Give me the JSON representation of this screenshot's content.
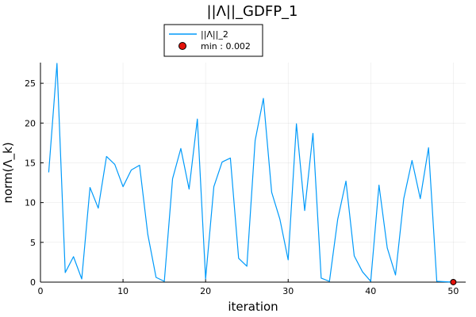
{
  "chart_data": {
    "type": "line",
    "title": "||Λ||_GDFP_1",
    "xlabel": "iteration",
    "ylabel": "norm(Λ_k)",
    "xlim": [
      0,
      51.5
    ],
    "ylim": [
      0,
      27.6
    ],
    "x_ticks": [
      0,
      10,
      20,
      30,
      40,
      50
    ],
    "y_ticks": [
      0,
      5,
      10,
      15,
      20,
      25
    ],
    "grid": true,
    "legend_position": "top-center",
    "series": [
      {
        "name": "||Λ||_2",
        "color": "#009AFA",
        "x": [
          1,
          2,
          3,
          4,
          5,
          6,
          7,
          8,
          9,
          10,
          11,
          12,
          13,
          14,
          15,
          16,
          17,
          18,
          19,
          20,
          21,
          22,
          23,
          24,
          25,
          26,
          27,
          28,
          29,
          30,
          31,
          32,
          33,
          34,
          35,
          36,
          37,
          38,
          39,
          40,
          41,
          42,
          43,
          44,
          45,
          46,
          47,
          48,
          49,
          50
        ],
        "y": [
          13.8,
          27.5,
          1.2,
          3.2,
          0.4,
          11.9,
          9.3,
          15.8,
          14.8,
          12.0,
          14.1,
          14.7,
          6.0,
          0.6,
          0.1,
          13.0,
          16.8,
          11.7,
          20.5,
          0.4,
          12.0,
          15.1,
          15.6,
          3.0,
          2.0,
          17.8,
          23.1,
          11.3,
          7.9,
          2.8,
          19.9,
          9.0,
          18.7,
          0.5,
          0.1,
          7.9,
          12.7,
          3.3,
          1.3,
          0.1,
          12.2,
          4.3,
          0.9,
          10.5,
          15.3,
          10.5,
          16.9,
          0.1,
          0.05,
          0.002
        ]
      }
    ],
    "marker": {
      "name": "min : 0.002",
      "x": 50,
      "y": 0.002,
      "color": "#E3120B"
    }
  }
}
